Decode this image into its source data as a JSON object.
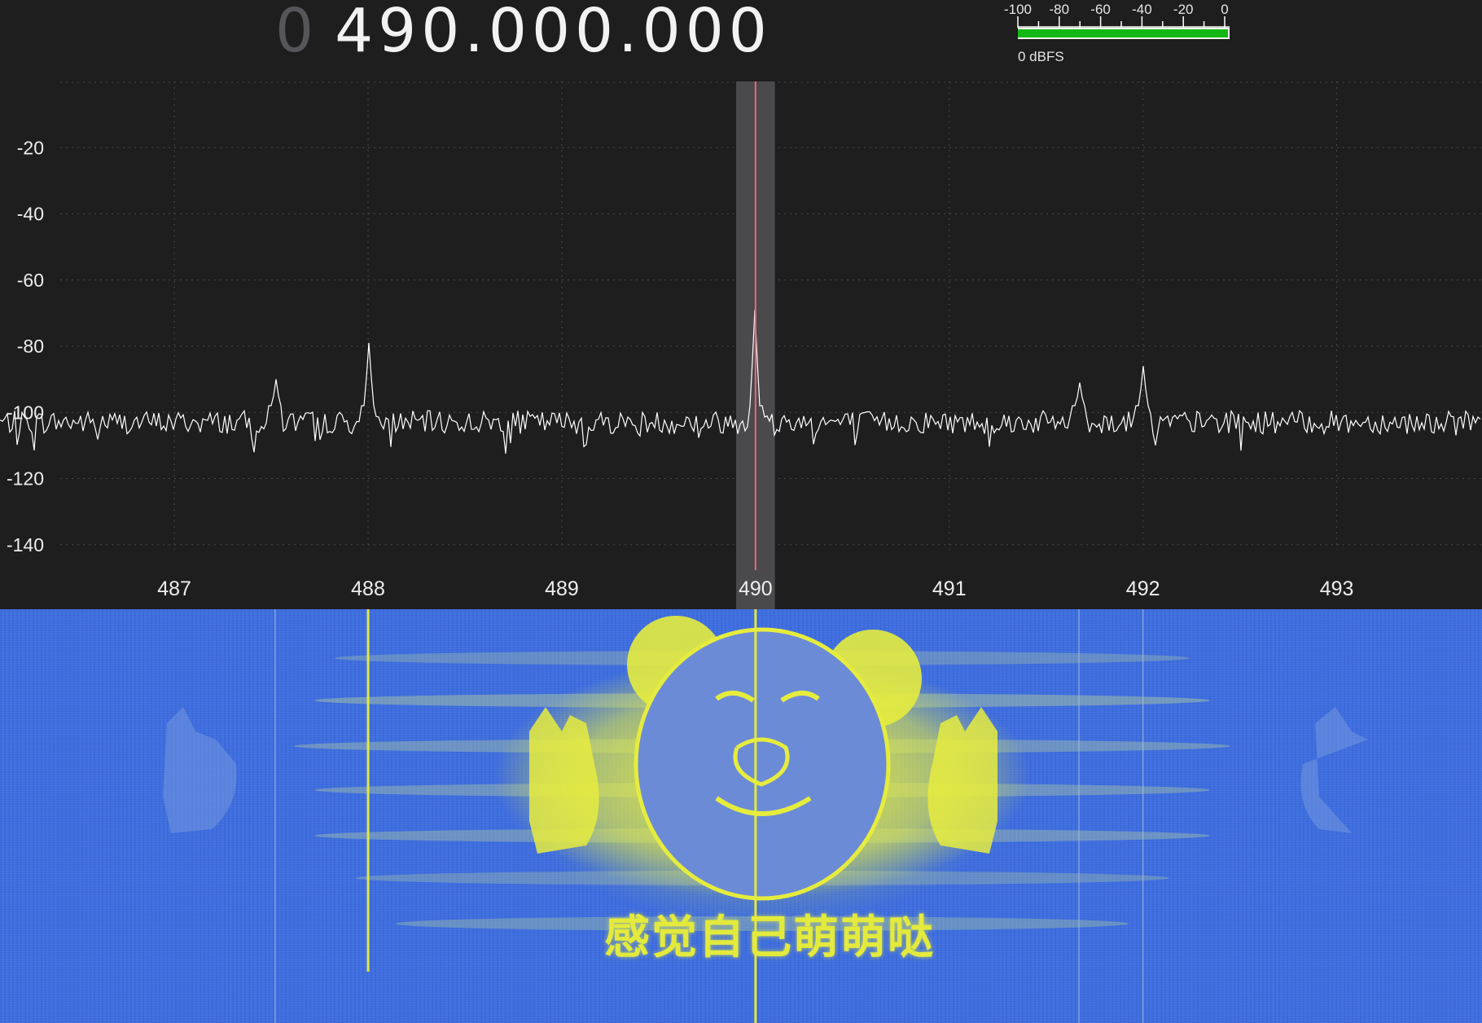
{
  "header": {
    "frequency_prefix": "0",
    "frequency": "490.000.000"
  },
  "level_meter": {
    "scale_labels": [
      "-100",
      "-80",
      "-60",
      "-40",
      "-20",
      "0"
    ],
    "scale_min": -100,
    "scale_max": 0,
    "level_dbfs": 0,
    "caption": "0 dBFS",
    "bar_color": "#14b814"
  },
  "spectrum": {
    "y_tick_labels": [
      "-20",
      "-40",
      "-60",
      "-80",
      "-100",
      "-120",
      "-140"
    ],
    "y_range": [
      -160,
      0
    ],
    "x_tick_labels": [
      "487",
      "488",
      "489",
      "490",
      "491",
      "492",
      "493"
    ],
    "x_range": [
      486.1,
      493.75
    ],
    "center_mhz": 490,
    "bandwidth_mhz": 0.2,
    "noise_floor_db": -100,
    "peaks": [
      {
        "mhz": 487.52,
        "db": -90
      },
      {
        "mhz": 488.0,
        "db": -79
      },
      {
        "mhz": 490.0,
        "db": -69
      },
      {
        "mhz": 491.67,
        "db": -91
      },
      {
        "mhz": 492.0,
        "db": -86
      }
    ],
    "trace_color": "#ffffff",
    "marker_color": "#e56b74",
    "grid": true
  },
  "waterfall": {
    "caption": "感觉自己萌萌哒",
    "background_color": "#3f6fe0",
    "highlight_color": "#e6ec3e",
    "persistent_lines_mhz": [
      487.52,
      488.0,
      490.0,
      491.67,
      492.0
    ]
  }
}
